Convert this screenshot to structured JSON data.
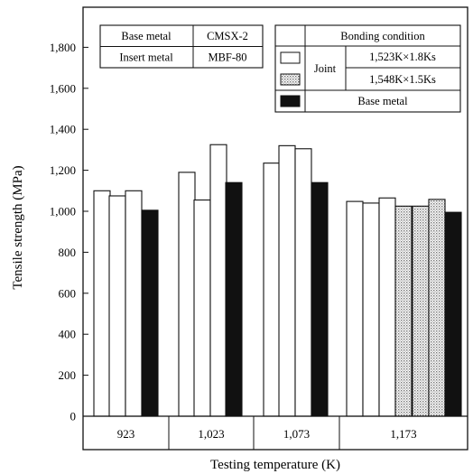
{
  "chart_data": {
    "type": "bar",
    "xlabel": "Testing temperature (K)",
    "ylabel": "Tensile strength (MPa)",
    "ylim": [
      0,
      2000
    ],
    "yticks": [
      0,
      200,
      400,
      600,
      800,
      1000,
      1200,
      1400,
      1600,
      1800
    ],
    "ytick_labels": [
      "0",
      "200",
      "400",
      "600",
      "800",
      "1,000",
      "1,200",
      "1,400",
      "1,600",
      "1,800"
    ],
    "groups": [
      {
        "label": "923",
        "bars": [
          {
            "series": "joint_1523",
            "value": 1100
          },
          {
            "series": "joint_1523",
            "value": 1075
          },
          {
            "series": "joint_1523",
            "value": 1100
          },
          {
            "series": "base_metal",
            "value": 1005
          }
        ]
      },
      {
        "label": "1,023",
        "bars": [
          {
            "series": "joint_1523",
            "value": 1190
          },
          {
            "series": "joint_1523",
            "value": 1055
          },
          {
            "series": "joint_1523",
            "value": 1325
          },
          {
            "series": "base_metal",
            "value": 1140
          }
        ]
      },
      {
        "label": "1,073",
        "bars": [
          {
            "series": "joint_1523",
            "value": 1235
          },
          {
            "series": "joint_1523",
            "value": 1320
          },
          {
            "series": "joint_1523",
            "value": 1305
          },
          {
            "series": "base_metal",
            "value": 1140
          }
        ]
      },
      {
        "label": "1,173",
        "bars": [
          {
            "series": "joint_1523",
            "value": 1048
          },
          {
            "series": "joint_1523",
            "value": 1040
          },
          {
            "series": "joint_1523",
            "value": 1065
          },
          {
            "series": "joint_1548",
            "value": 1025
          },
          {
            "series": "joint_1548",
            "value": 1025
          },
          {
            "series": "joint_1548",
            "value": 1058
          },
          {
            "series": "base_metal",
            "value": 995
          }
        ]
      }
    ],
    "series_styles": {
      "joint_1523": {
        "fill": "#ffffff"
      },
      "joint_1548": {
        "fill": "#d0d0d0"
      },
      "base_metal": {
        "fill": "#111111"
      }
    },
    "materials_table": [
      [
        "Base metal",
        "CMSX-2"
      ],
      [
        "Insert metal",
        "MBF-80"
      ]
    ],
    "legend": {
      "header": "Bonding condition",
      "group_label": "Joint",
      "entries": [
        {
          "series": "joint_1523",
          "label": "1,523K×1.8Ks"
        },
        {
          "series": "joint_1548",
          "label": "1,548K×1.5Ks"
        },
        {
          "series": "base_metal",
          "label": "Base metal"
        }
      ]
    }
  }
}
